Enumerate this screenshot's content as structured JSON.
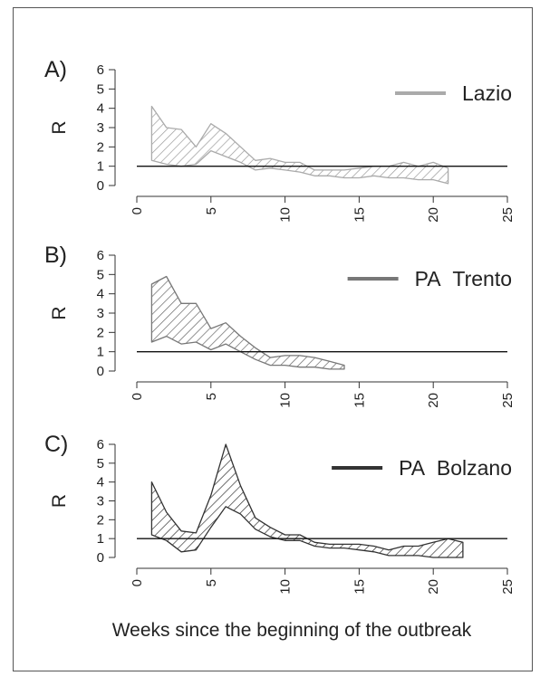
{
  "chart_data": [
    {
      "type": "area",
      "panel_label": "A)",
      "ylabel": "R",
      "xlim": [
        0,
        25
      ],
      "ylim": [
        0,
        6
      ],
      "xticks": [
        "0",
        "5",
        "10",
        "15",
        "20",
        "25"
      ],
      "yticks": [
        "0",
        "1",
        "2",
        "3",
        "4",
        "5",
        "6"
      ],
      "reference_line_y": 1,
      "legend_position": "top-right",
      "series": [
        {
          "name": "Lazio",
          "color": "#aaaaaa",
          "x": [
            1,
            2,
            3,
            4,
            5,
            6,
            7,
            8,
            9,
            10,
            11,
            12,
            13,
            14,
            15,
            16,
            17,
            18,
            19,
            20,
            21
          ],
          "upper": [
            4.1,
            3.0,
            2.9,
            2.0,
            3.2,
            2.7,
            2.0,
            1.3,
            1.4,
            1.2,
            1.2,
            0.8,
            0.8,
            0.8,
            0.9,
            1.0,
            1.0,
            1.2,
            1.0,
            1.2,
            0.9
          ],
          "lower": [
            1.3,
            1.1,
            1.0,
            1.1,
            1.8,
            1.5,
            1.2,
            0.8,
            0.9,
            0.8,
            0.7,
            0.5,
            0.5,
            0.4,
            0.4,
            0.5,
            0.4,
            0.4,
            0.3,
            0.3,
            0.1
          ]
        }
      ]
    },
    {
      "type": "area",
      "panel_label": "B)",
      "ylabel": "R",
      "xlim": [
        0,
        25
      ],
      "ylim": [
        0,
        6
      ],
      "xticks": [
        "0",
        "5",
        "10",
        "15",
        "20",
        "25"
      ],
      "yticks": [
        "0",
        "1",
        "2",
        "3",
        "4",
        "5",
        "6"
      ],
      "reference_line_y": 1,
      "legend_position": "top-right",
      "series": [
        {
          "name": "PA Trento",
          "color": "#777777",
          "x": [
            1,
            2,
            3,
            4,
            5,
            6,
            7,
            8,
            9,
            10,
            11,
            12,
            13,
            14
          ],
          "upper": [
            4.5,
            4.9,
            3.5,
            3.5,
            2.2,
            2.5,
            1.8,
            1.2,
            0.7,
            0.8,
            0.8,
            0.7,
            0.5,
            0.3
          ],
          "lower": [
            1.5,
            1.8,
            1.4,
            1.5,
            1.1,
            1.4,
            1.0,
            0.6,
            0.3,
            0.3,
            0.2,
            0.2,
            0.1,
            0.1
          ]
        }
      ]
    },
    {
      "type": "area",
      "panel_label": "C)",
      "ylabel": "R",
      "xlabel": "Weeks since the beginning of the outbreak",
      "xlim": [
        0,
        25
      ],
      "ylim": [
        0,
        6
      ],
      "xticks": [
        "0",
        "5",
        "10",
        "15",
        "20",
        "25"
      ],
      "yticks": [
        "0",
        "1",
        "2",
        "3",
        "4",
        "5",
        "6"
      ],
      "reference_line_y": 1,
      "legend_position": "top-right",
      "series": [
        {
          "name": "PA Bolzano",
          "color": "#333333",
          "x": [
            1,
            2,
            3,
            4,
            5,
            6,
            7,
            8,
            9,
            10,
            11,
            12,
            13,
            14,
            15,
            16,
            17,
            18,
            19,
            20,
            21,
            22
          ],
          "upper": [
            4.0,
            2.4,
            1.4,
            1.3,
            3.3,
            6.0,
            3.8,
            2.1,
            1.6,
            1.2,
            1.2,
            0.8,
            0.7,
            0.7,
            0.7,
            0.6,
            0.4,
            0.6,
            0.6,
            0.8,
            1.0,
            0.8
          ],
          "lower": [
            1.2,
            0.9,
            0.3,
            0.4,
            1.6,
            2.7,
            2.3,
            1.5,
            1.1,
            0.9,
            0.9,
            0.6,
            0.5,
            0.5,
            0.4,
            0.3,
            0.1,
            0.1,
            0.1,
            0.0,
            0.0,
            0.0
          ]
        }
      ]
    }
  ]
}
